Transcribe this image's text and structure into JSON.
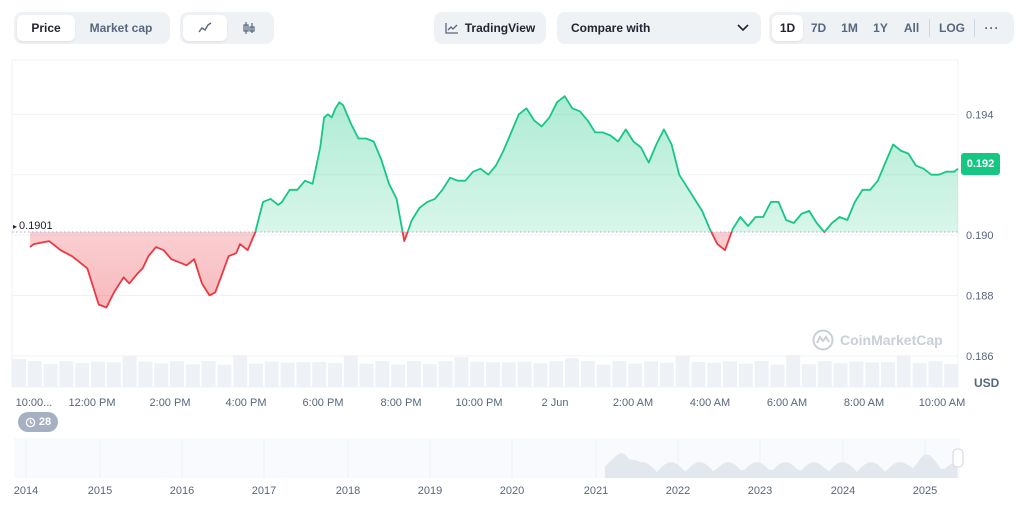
{
  "toolbar": {
    "price_tab": "Price",
    "market_cap_tab": "Market cap",
    "tradingview_label": "TradingView",
    "compare_label": "Compare with",
    "ranges": [
      "1D",
      "7D",
      "1M",
      "1Y",
      "All"
    ],
    "log_label": "LOG",
    "more_label": "···",
    "active_type": "Price",
    "active_range": "1D",
    "active_mode": "line-chart-icon"
  },
  "chart_data": {
    "type": "line",
    "currency_label": "USD",
    "reference_price": 0.1901,
    "reference_label": "0.1901",
    "current_price_label": "0.192",
    "y_ticks": [
      0.186,
      0.188,
      0.19,
      0.192,
      0.194
    ],
    "y_tick_labels": [
      "0.186",
      "0.188",
      "0.190",
      "0.194"
    ],
    "ylim": [
      0.185,
      0.1958
    ],
    "x_tick_labels": [
      "10:00...",
      "12:00 PM",
      "2:00 PM",
      "4:00 PM",
      "6:00 PM",
      "8:00 PM",
      "10:00 PM",
      "2 Jun",
      "2:00 AM",
      "4:00 AM",
      "6:00 AM",
      "8:00 AM",
      "10:00 AM"
    ],
    "x_hours": [
      0,
      2,
      4,
      6,
      8,
      10,
      12,
      14,
      16,
      18,
      20,
      22,
      24
    ],
    "above_color": "#16c784",
    "below_color": "#ea3943",
    "series": [
      {
        "x": [
          0,
          0.1,
          0.5,
          0.8,
          1.1,
          1.5,
          1.8,
          2.0,
          2.2,
          2.45,
          2.6,
          2.8,
          2.95,
          3.1,
          3.3,
          3.5,
          3.7,
          3.9,
          4.1,
          4.3,
          4.5,
          4.7,
          4.85,
          5.0,
          5.2,
          5.4,
          5.5,
          5.7,
          5.9,
          6.1,
          6.3,
          6.5,
          6.6,
          6.8,
          7.0,
          7.2,
          7.4,
          7.6,
          7.7,
          7.8,
          7.9,
          8.0,
          8.1,
          8.2,
          8.4,
          8.6,
          8.8,
          9.0,
          9.2,
          9.4,
          9.6,
          9.8,
          10.0,
          10.2,
          10.4,
          10.6,
          10.8,
          11.0,
          11.2,
          11.4,
          11.6,
          11.8,
          12.0,
          12.2,
          12.4,
          12.6,
          12.8,
          13.0,
          13.2,
          13.4,
          13.6,
          13.8,
          14.0,
          14.2,
          14.4,
          14.6,
          14.8,
          15.0,
          15.2,
          15.4,
          15.6,
          15.8,
          16.0,
          16.2,
          16.4,
          16.6,
          16.8,
          17.0,
          17.2,
          17.4,
          17.6,
          17.8,
          18.0,
          18.2,
          18.4,
          18.6,
          18.8,
          19.0,
          19.2,
          19.4,
          19.6,
          19.8,
          20.0,
          20.2,
          20.4,
          20.6,
          20.8,
          21.0,
          21.2,
          21.4,
          21.6,
          21.8,
          22.0,
          22.2,
          22.4,
          22.6,
          22.8,
          23.0,
          23.2,
          23.4,
          23.6,
          23.8,
          24.0,
          24.2,
          24.3
        ],
        "values": [
          0.1896,
          0.1897,
          0.1898,
          0.1895,
          0.1893,
          0.1889,
          0.1877,
          0.1876,
          0.1881,
          0.1886,
          0.1884,
          0.1887,
          0.1889,
          0.1893,
          0.1896,
          0.1895,
          0.1892,
          0.1891,
          0.189,
          0.1892,
          0.1884,
          0.188,
          0.1881,
          0.1886,
          0.1893,
          0.1894,
          0.1897,
          0.1895,
          0.1901,
          0.1911,
          0.1912,
          0.191,
          0.1911,
          0.1915,
          0.1915,
          0.1918,
          0.1917,
          0.1929,
          0.1939,
          0.194,
          0.1939,
          0.1942,
          0.1944,
          0.1943,
          0.1937,
          0.1932,
          0.1932,
          0.1931,
          0.1925,
          0.1917,
          0.1912,
          0.1898,
          0.1905,
          0.1909,
          0.1911,
          0.1912,
          0.1915,
          0.1919,
          0.1918,
          0.1918,
          0.1921,
          0.1922,
          0.192,
          0.1923,
          0.1928,
          0.1934,
          0.194,
          0.1942,
          0.1938,
          0.1936,
          0.1939,
          0.1944,
          0.1946,
          0.1942,
          0.1941,
          0.1938,
          0.1934,
          0.1934,
          0.1933,
          0.1931,
          0.1935,
          0.1931,
          0.1929,
          0.1924,
          0.193,
          0.1935,
          0.193,
          0.192,
          0.1916,
          0.1912,
          0.1908,
          0.1902,
          0.1897,
          0.1895,
          0.1902,
          0.1906,
          0.1903,
          0.1906,
          0.1906,
          0.1911,
          0.1911,
          0.1905,
          0.1904,
          0.1907,
          0.1908,
          0.1904,
          0.1901,
          0.1904,
          0.1906,
          0.1905,
          0.1911,
          0.1915,
          0.1915,
          0.1918,
          0.1924,
          0.193,
          0.1928,
          0.1927,
          0.1923,
          0.1922,
          0.192,
          0.192,
          0.1921,
          0.1921,
          0.1922
        ]
      }
    ]
  },
  "history": {
    "badge_label": "28",
    "year_labels": [
      "2014",
      "2015",
      "2016",
      "2017",
      "2018",
      "2019",
      "2020",
      "2021",
      "2022",
      "2023",
      "2024",
      "2025"
    ]
  },
  "watermark_text": "CoinMarketCap"
}
